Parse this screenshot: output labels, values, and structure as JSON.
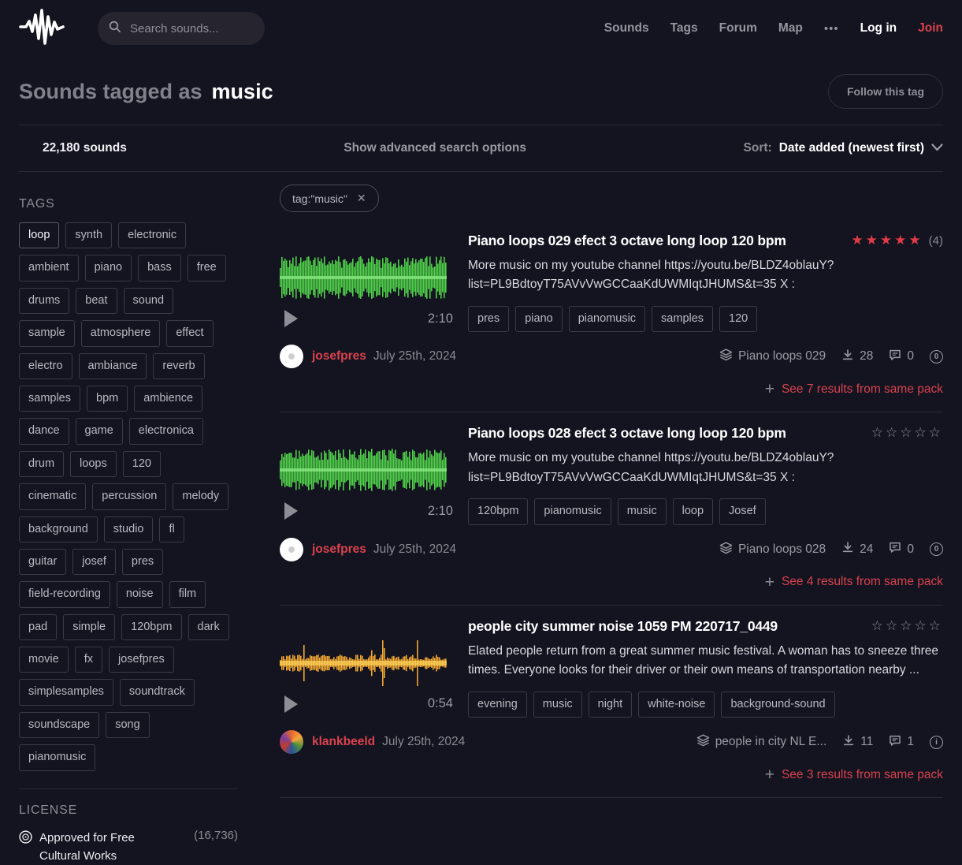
{
  "colors": {
    "accent_red": "#d9434e",
    "star_red": "#e23b48",
    "waveform_green": "#4fd14a",
    "waveform_green_bright": "#8cec86",
    "waveform_orange": "#f0a832",
    "waveform_orange_bright": "#ffd257"
  },
  "nav": {
    "search_placeholder": "Search sounds...",
    "links": [
      "Sounds",
      "Tags",
      "Forum",
      "Map"
    ],
    "more_label": "•••",
    "login_label": "Log in",
    "join_label": "Join"
  },
  "header": {
    "title_prefix": "Sounds tagged as",
    "title_tag": "music",
    "follow_button": "Follow this tag"
  },
  "results_bar": {
    "count": "22,180 sounds",
    "advanced": "Show advanced search options",
    "sort_label": "Sort:",
    "sort_value": "Date added (newest first)"
  },
  "sidebar": {
    "tags_heading": "TAGS",
    "selected_tag": "loop",
    "tags": [
      "loop",
      "synth",
      "electronic",
      "ambient",
      "piano",
      "bass",
      "free",
      "drums",
      "beat",
      "sound",
      "sample",
      "atmosphere",
      "effect",
      "electro",
      "ambiance",
      "reverb",
      "samples",
      "bpm",
      "ambience",
      "dance",
      "game",
      "electronica",
      "drum",
      "loops",
      "120",
      "cinematic",
      "percussion",
      "melody",
      "background",
      "studio",
      "fl",
      "guitar",
      "josef",
      "pres",
      "field-recording",
      "noise",
      "film",
      "pad",
      "simple",
      "120bpm",
      "dark",
      "movie",
      "fx",
      "josefpres",
      "simplesamples",
      "soundtrack",
      "soundscape",
      "song",
      "pianomusic"
    ],
    "license_heading": "LICENSE",
    "license": {
      "label": "Approved for Free Cultural Works",
      "count": "(16,736)"
    }
  },
  "filter": {
    "label": "tag:\"music\""
  },
  "sounds": [
    {
      "title": "Piano loops 029 efect 3 octave long loop 120 bpm",
      "description": "More music on my youtube channel https://youtu.be/BLDZ4oblauY?list=PL9BdtoyT75AVvVwGCCaaKdUWMIqtJHUMS&t=35 X :",
      "duration": "2:10",
      "rating": 5,
      "rating_count": "(4)",
      "tags": [
        "pres",
        "piano",
        "pianomusic",
        "samples",
        "120"
      ],
      "username": "josefpres",
      "date": "July 25th, 2024",
      "pack": "Piano loops 029",
      "downloads": "28",
      "comments": "0",
      "license_glyph": "0",
      "pack_link": "See 7 results from same pack",
      "waveform_color": "green"
    },
    {
      "title": "Piano loops 028 efect 3 octave long loop 120 bpm",
      "description": "More music on my youtube channel https://youtu.be/BLDZ4oblauY?list=PL9BdtoyT75AVvVwGCCaaKdUWMIqtJHUMS&t=35 X :",
      "duration": "2:10",
      "rating": 0,
      "tags": [
        "120bpm",
        "pianomusic",
        "music",
        "loop",
        "Josef"
      ],
      "username": "josefpres",
      "date": "July 25th, 2024",
      "pack": "Piano loops 028",
      "downloads": "24",
      "comments": "0",
      "license_glyph": "0",
      "pack_link": "See 4 results from same pack",
      "waveform_color": "green"
    },
    {
      "title": "people city summer noise 1059 PM 220717_0449",
      "description": "Elated people return from a great summer music festival. A woman has to sneeze three times. Everyone looks for their driver or their own means of transportation nearby ...",
      "duration": "0:54",
      "rating": 0,
      "tags": [
        "evening",
        "music",
        "night",
        "white-noise",
        "background-sound"
      ],
      "username": "klankbeeld",
      "date": "July 25th, 2024",
      "pack": "people in city NL E...",
      "downloads": "11",
      "comments": "1",
      "license_glyph": "i",
      "pack_link": "See 3 results from same pack",
      "waveform_color": "orange"
    }
  ]
}
